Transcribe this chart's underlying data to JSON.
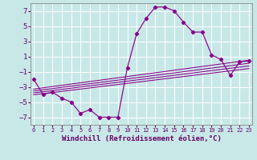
{
  "xlabel": "Windchill (Refroidissement éolien,°C)",
  "x": [
    0,
    1,
    2,
    3,
    4,
    5,
    6,
    7,
    8,
    9,
    10,
    11,
    12,
    13,
    14,
    15,
    16,
    17,
    18,
    19,
    20,
    21,
    22,
    23
  ],
  "main_y": [
    -2.0,
    -4.0,
    -3.7,
    -4.5,
    -5.0,
    -6.5,
    -6.0,
    -7.0,
    -7.0,
    -7.0,
    -0.5,
    4.0,
    6.0,
    7.5,
    7.5,
    7.0,
    5.5,
    4.2,
    4.2,
    1.2,
    0.6,
    -1.5,
    0.3,
    0.4
  ],
  "trend_lines": [
    {
      "y0": -3.3,
      "y1": 0.5
    },
    {
      "y0": -3.55,
      "y1": 0.1
    },
    {
      "y0": -3.8,
      "y1": -0.25
    },
    {
      "y0": -4.05,
      "y1": -0.6
    }
  ],
  "line_color": "#880088",
  "bg_color": "#c8e8e8",
  "ylim": [
    -8,
    8
  ],
  "xlim": [
    -0.3,
    23.3
  ],
  "yticks": [
    -7,
    -5,
    -3,
    -1,
    1,
    3,
    5,
    7
  ],
  "xticks": [
    0,
    1,
    2,
    3,
    4,
    5,
    6,
    7,
    8,
    9,
    10,
    11,
    12,
    13,
    14,
    15,
    16,
    17,
    18,
    19,
    20,
    21,
    22,
    23
  ],
  "xlabel_fontsize": 6.5,
  "ytick_fontsize": 6.5,
  "xtick_fontsize": 5.0
}
